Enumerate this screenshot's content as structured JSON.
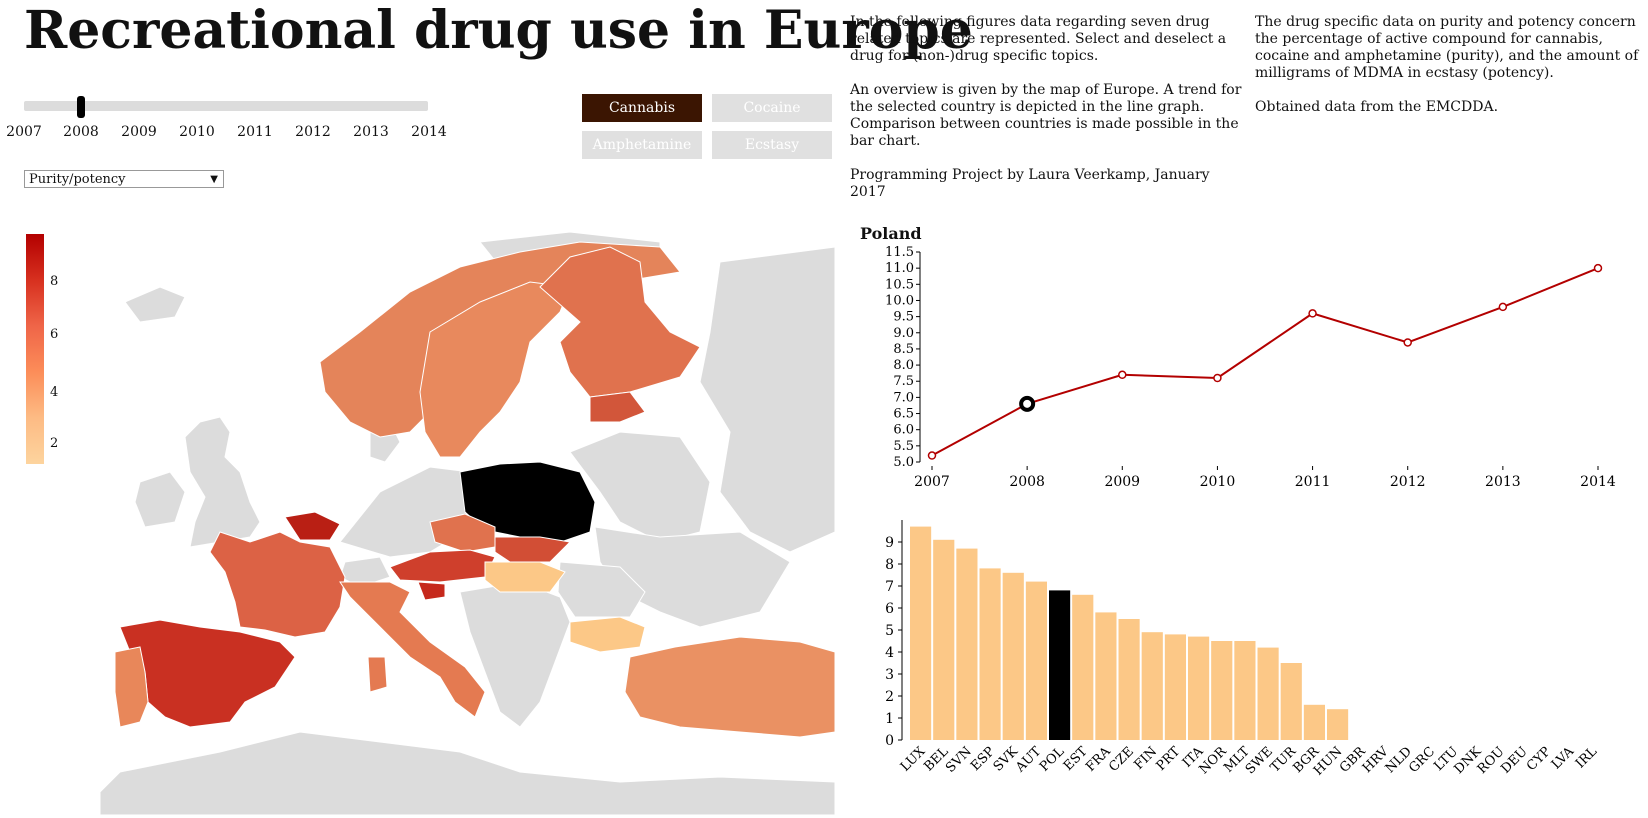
{
  "title": "Recreational drug use in Europe",
  "intro": {
    "col1": [
      "In the following figures data regarding seven drug related topics are represented. Select and deselect a drug for (non-)drug specific topics.",
      "An overview is given by the map of Europe. A trend for the selected country is depicted in the line graph. Comparison between countries is made possible in the bar chart.",
      "Programming Project by Laura Veerkamp, January 2017"
    ],
    "col2": [
      "The drug specific data on purity and potency concern the percentage of active compound for cannabis, cocaine and amphetamine (purity), and the amount of milligrams of MDMA in ecstasy (potency).",
      "Obtained data from the EMCDDA."
    ]
  },
  "slider": {
    "years": [
      "2007",
      "2008",
      "2009",
      "2010",
      "2011",
      "2012",
      "2013",
      "2014"
    ],
    "selected": "2008"
  },
  "drugs": [
    {
      "label": "Cannabis",
      "active": true
    },
    {
      "label": "Cocaine",
      "active": false
    },
    {
      "label": "Amphetamine",
      "active": false
    },
    {
      "label": "Ecstasy",
      "active": false
    }
  ],
  "topic_select": {
    "value": "Purity/potency"
  },
  "legend": {
    "ticks": [
      "8",
      "6",
      "4",
      "2"
    ]
  },
  "map": {
    "countries": [
      {
        "name": "POL",
        "color": "#000000"
      },
      {
        "name": "ESP",
        "color": "#c93022"
      },
      {
        "name": "PRT",
        "color": "#e8875a"
      },
      {
        "name": "FRA",
        "color": "#dc6245"
      },
      {
        "name": "BEL",
        "color": "#b91f14"
      },
      {
        "name": "ITA",
        "color": "#e47a51"
      },
      {
        "name": "AUT",
        "color": "#cf3f2c"
      },
      {
        "name": "SVN",
        "color": "#c6291c"
      },
      {
        "name": "CZE",
        "color": "#e0724e"
      },
      {
        "name": "SVK",
        "color": "#d24e35"
      },
      {
        "name": "HUN",
        "color": "#fcc887"
      },
      {
        "name": "BGR",
        "color": "#fcc887"
      },
      {
        "name": "TUR",
        "color": "#ea9163"
      },
      {
        "name": "NOR",
        "color": "#e4845a"
      },
      {
        "name": "SWE",
        "color": "#e8895d"
      },
      {
        "name": "FIN",
        "color": "#e0724e"
      },
      {
        "name": "EST",
        "color": "#d2563a"
      },
      {
        "name": "LUX",
        "color": "#b30000"
      }
    ]
  },
  "chart_data": [
    {
      "type": "line",
      "title": "Poland",
      "x": [
        "2007",
        "2008",
        "2009",
        "2010",
        "2011",
        "2012",
        "2013",
        "2014"
      ],
      "y": [
        5.2,
        6.8,
        7.7,
        7.6,
        9.6,
        8.7,
        9.8,
        11.0
      ],
      "ylim": [
        5.0,
        11.5
      ],
      "yticks": [
        "5.0",
        "5.5",
        "6.0",
        "6.5",
        "7.0",
        "7.5",
        "8.0",
        "8.5",
        "9.0",
        "9.5",
        "10.0",
        "10.5",
        "11.0",
        "11.5"
      ],
      "highlight": "2008",
      "color": "#b30000"
    },
    {
      "type": "bar",
      "categories": [
        "LUX",
        "BEL",
        "SVN",
        "ESP",
        "SVK",
        "AUT",
        "POL",
        "EST",
        "FRA",
        "CZE",
        "FIN",
        "PRT",
        "ITA",
        "NOR",
        "MLT",
        "SWE",
        "TUR",
        "BGR",
        "HUN",
        "GBR",
        "HRV",
        "NLD",
        "GRC",
        "LTU",
        "DNK",
        "ROU",
        "DEU",
        "CYP",
        "LVA",
        "IRL"
      ],
      "values": [
        9.7,
        9.1,
        8.7,
        7.8,
        7.6,
        7.2,
        6.8,
        6.6,
        5.8,
        5.5,
        4.9,
        4.8,
        4.7,
        4.5,
        4.5,
        4.2,
        3.5,
        1.6,
        1.4,
        0,
        0,
        0,
        0,
        0,
        0,
        0,
        0,
        0,
        0,
        0
      ],
      "yticks": [
        "0",
        "1",
        "2",
        "3",
        "4",
        "5",
        "6",
        "7",
        "8",
        "9"
      ],
      "ylim": [
        0,
        10
      ],
      "highlight": "POL",
      "color": "#fcc887",
      "highlight_color": "#000000"
    }
  ]
}
